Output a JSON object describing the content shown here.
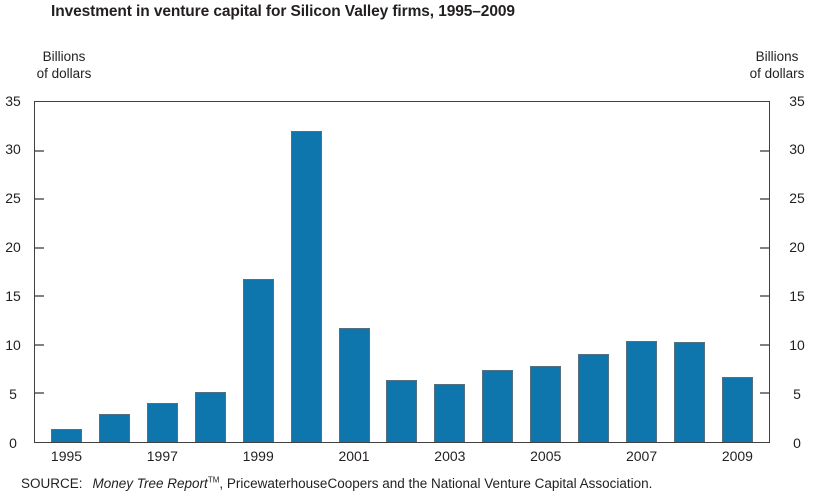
{
  "title": "Investment in venture capital for Silicon Valley firms, 1995–2009",
  "y_axis_unit": {
    "line1": "Billions",
    "line2": "of dollars"
  },
  "source": {
    "label": "SOURCE:",
    "report_italic": "Money Tree Report",
    "trademark": "TM",
    "rest": ", PricewaterhouseCoopers and the National Venture Capital Association."
  },
  "chart_data": {
    "type": "bar",
    "title": "Investment in venture capital for Silicon Valley firms, 1995–2009",
    "categories": [
      1995,
      1996,
      1997,
      1998,
      1999,
      2000,
      2001,
      2002,
      2003,
      2004,
      2005,
      2006,
      2007,
      2008,
      2009
    ],
    "values": [
      1.3,
      2.9,
      4.0,
      5.2,
      16.8,
      32.0,
      11.7,
      6.4,
      6.0,
      7.4,
      7.8,
      9.1,
      10.4,
      10.3,
      6.7
    ],
    "xlabel": "",
    "ylabel": "Billions of dollars",
    "ylabel_right": "Billions of dollars",
    "ylim": [
      0,
      35
    ],
    "yticks": [
      0,
      5,
      10,
      15,
      20,
      25,
      30,
      35
    ],
    "x_tick_labels": [
      "1995",
      "1997",
      "1999",
      "2001",
      "2003",
      "2005",
      "2007",
      "2009"
    ],
    "bar_color": "#0e76ad",
    "axis_color": "#404041",
    "tick_color": "#7f8285",
    "grid": false,
    "legend": false,
    "plot_border": "full-box",
    "y_axis_sides": "both"
  }
}
